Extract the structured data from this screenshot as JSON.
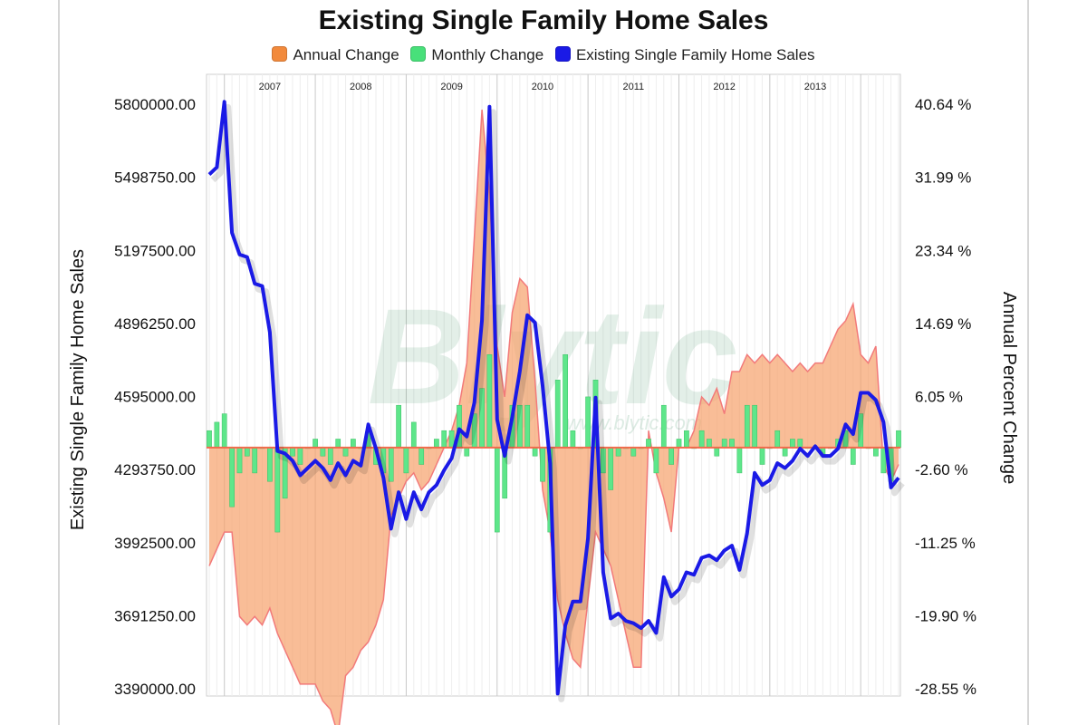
{
  "chart_data": {
    "type": "line",
    "title": "Existing Single Family Home Sales",
    "legend": [
      {
        "name": "Annual Change",
        "color": "#f28a3c"
      },
      {
        "name": "Monthly Change",
        "color": "#48e07a"
      },
      {
        "name": "Existing Single Family Home Sales",
        "color": "#1a1ae6"
      }
    ],
    "legend_position": "top",
    "ylabel_left": "Existing Single Family Home Sales",
    "ylabel_right": "Annual Percent Change",
    "y_left_ticks": [
      "5800000.00",
      "5498750.00",
      "5197500.00",
      "4896250.00",
      "4595000.00",
      "4293750.00",
      "3992500.00",
      "3691250.00",
      "3390000.00"
    ],
    "y_right_ticks": [
      "40.64 %",
      "31.99 %",
      "23.34 %",
      "14.69 %",
      "6.05 %",
      "-2.60 %",
      "-11.25 %",
      "-19.90 %",
      "-28.55 %"
    ],
    "ylim_left": [
      3390000,
      5800000
    ],
    "ylim_right": [
      -28.55,
      40.64
    ],
    "year_labels": [
      "2007",
      "2008",
      "2009",
      "2010",
      "2011",
      "2012",
      "2013"
    ],
    "x_start_year": 2006,
    "x_start_month": 11,
    "grid": true,
    "watermark": "Blytic",
    "watermark_url": "www.blytic.com",
    "series": [
      {
        "name": "Existing Single Family Home Sales",
        "type": "line",
        "color": "#1a1ae6",
        "values": [
          5510000,
          5540000,
          5810000,
          5270000,
          5180000,
          5170000,
          5060000,
          5050000,
          4860000,
          4370000,
          4360000,
          4330000,
          4270000,
          4300000,
          4330000,
          4300000,
          4250000,
          4320000,
          4270000,
          4330000,
          4310000,
          4480000,
          4380000,
          4260000,
          4050000,
          4200000,
          4090000,
          4200000,
          4130000,
          4200000,
          4230000,
          4290000,
          4340000,
          4460000,
          4430000,
          4570000,
          4910000,
          5790000,
          4500000,
          4350000,
          4510000,
          4700000,
          4930000,
          4900000,
          4640000,
          4320000,
          3370000,
          3650000,
          3750000,
          3750000,
          4010000,
          4590000,
          3870000,
          3680000,
          3700000,
          3670000,
          3660000,
          3640000,
          3670000,
          3620000,
          3850000,
          3770000,
          3800000,
          3870000,
          3860000,
          3930000,
          3940000,
          3920000,
          3960000,
          3980000,
          3880000,
          4030000,
          4280000,
          4230000,
          4250000,
          4320000,
          4300000,
          4330000,
          4380000,
          4350000,
          4390000,
          4350000,
          4350000,
          4380000,
          4480000,
          4440000,
          4610000,
          4610000,
          4580000,
          4490000,
          4220000,
          4260000
        ]
      },
      {
        "name": "Annual Change",
        "type": "area",
        "color": "#f28a3c",
        "values": [
          -14,
          -12,
          -10,
          -10,
          -20,
          -21,
          -20,
          -21,
          -19,
          -22,
          -24,
          -26,
          -28,
          -28,
          -28,
          -30,
          -31,
          -34,
          -27,
          -26,
          -24,
          -23,
          -21,
          -18,
          -8,
          -6,
          -4,
          -3,
          -5,
          -4,
          -2,
          0,
          2,
          5,
          10,
          25,
          40,
          30,
          12,
          6,
          16,
          20,
          19,
          8,
          -5,
          -10,
          -18,
          -22,
          -25,
          -26,
          -18,
          -10,
          -12,
          -14,
          -18,
          -22,
          -26,
          -26,
          2,
          -3,
          -6,
          -10,
          0,
          0,
          2,
          6,
          5,
          7,
          4,
          9,
          9,
          11,
          10,
          11,
          10,
          11,
          10,
          9,
          10,
          9,
          10,
          10,
          12,
          14,
          15,
          17,
          11,
          10,
          12,
          -2,
          -4,
          -2
        ]
      },
      {
        "name": "Monthly Change",
        "type": "bar",
        "color": "#48e07a",
        "values": [
          2,
          3,
          4,
          -7,
          -3,
          -1,
          -3,
          0,
          -4,
          -10,
          -6,
          -1,
          -2,
          0,
          1,
          -1,
          -2,
          1,
          -1,
          1,
          0,
          2,
          -2,
          -3,
          -4,
          5,
          -3,
          3,
          -2,
          0,
          1,
          2,
          2,
          5,
          -1,
          4,
          7,
          11,
          -10,
          -6,
          5,
          5,
          5,
          -1,
          -4,
          -10,
          8,
          11,
          2,
          0,
          6,
          8,
          -3,
          -5,
          -1,
          0,
          -1,
          0,
          1,
          -3,
          5,
          -2,
          1,
          2,
          0,
          2,
          1,
          -1,
          1,
          1,
          -3,
          5,
          5,
          -2,
          0,
          2,
          -1,
          1,
          1,
          0,
          0,
          -1,
          0,
          1,
          2,
          -2,
          4,
          0,
          -1,
          -3,
          -4,
          2
        ]
      }
    ]
  }
}
